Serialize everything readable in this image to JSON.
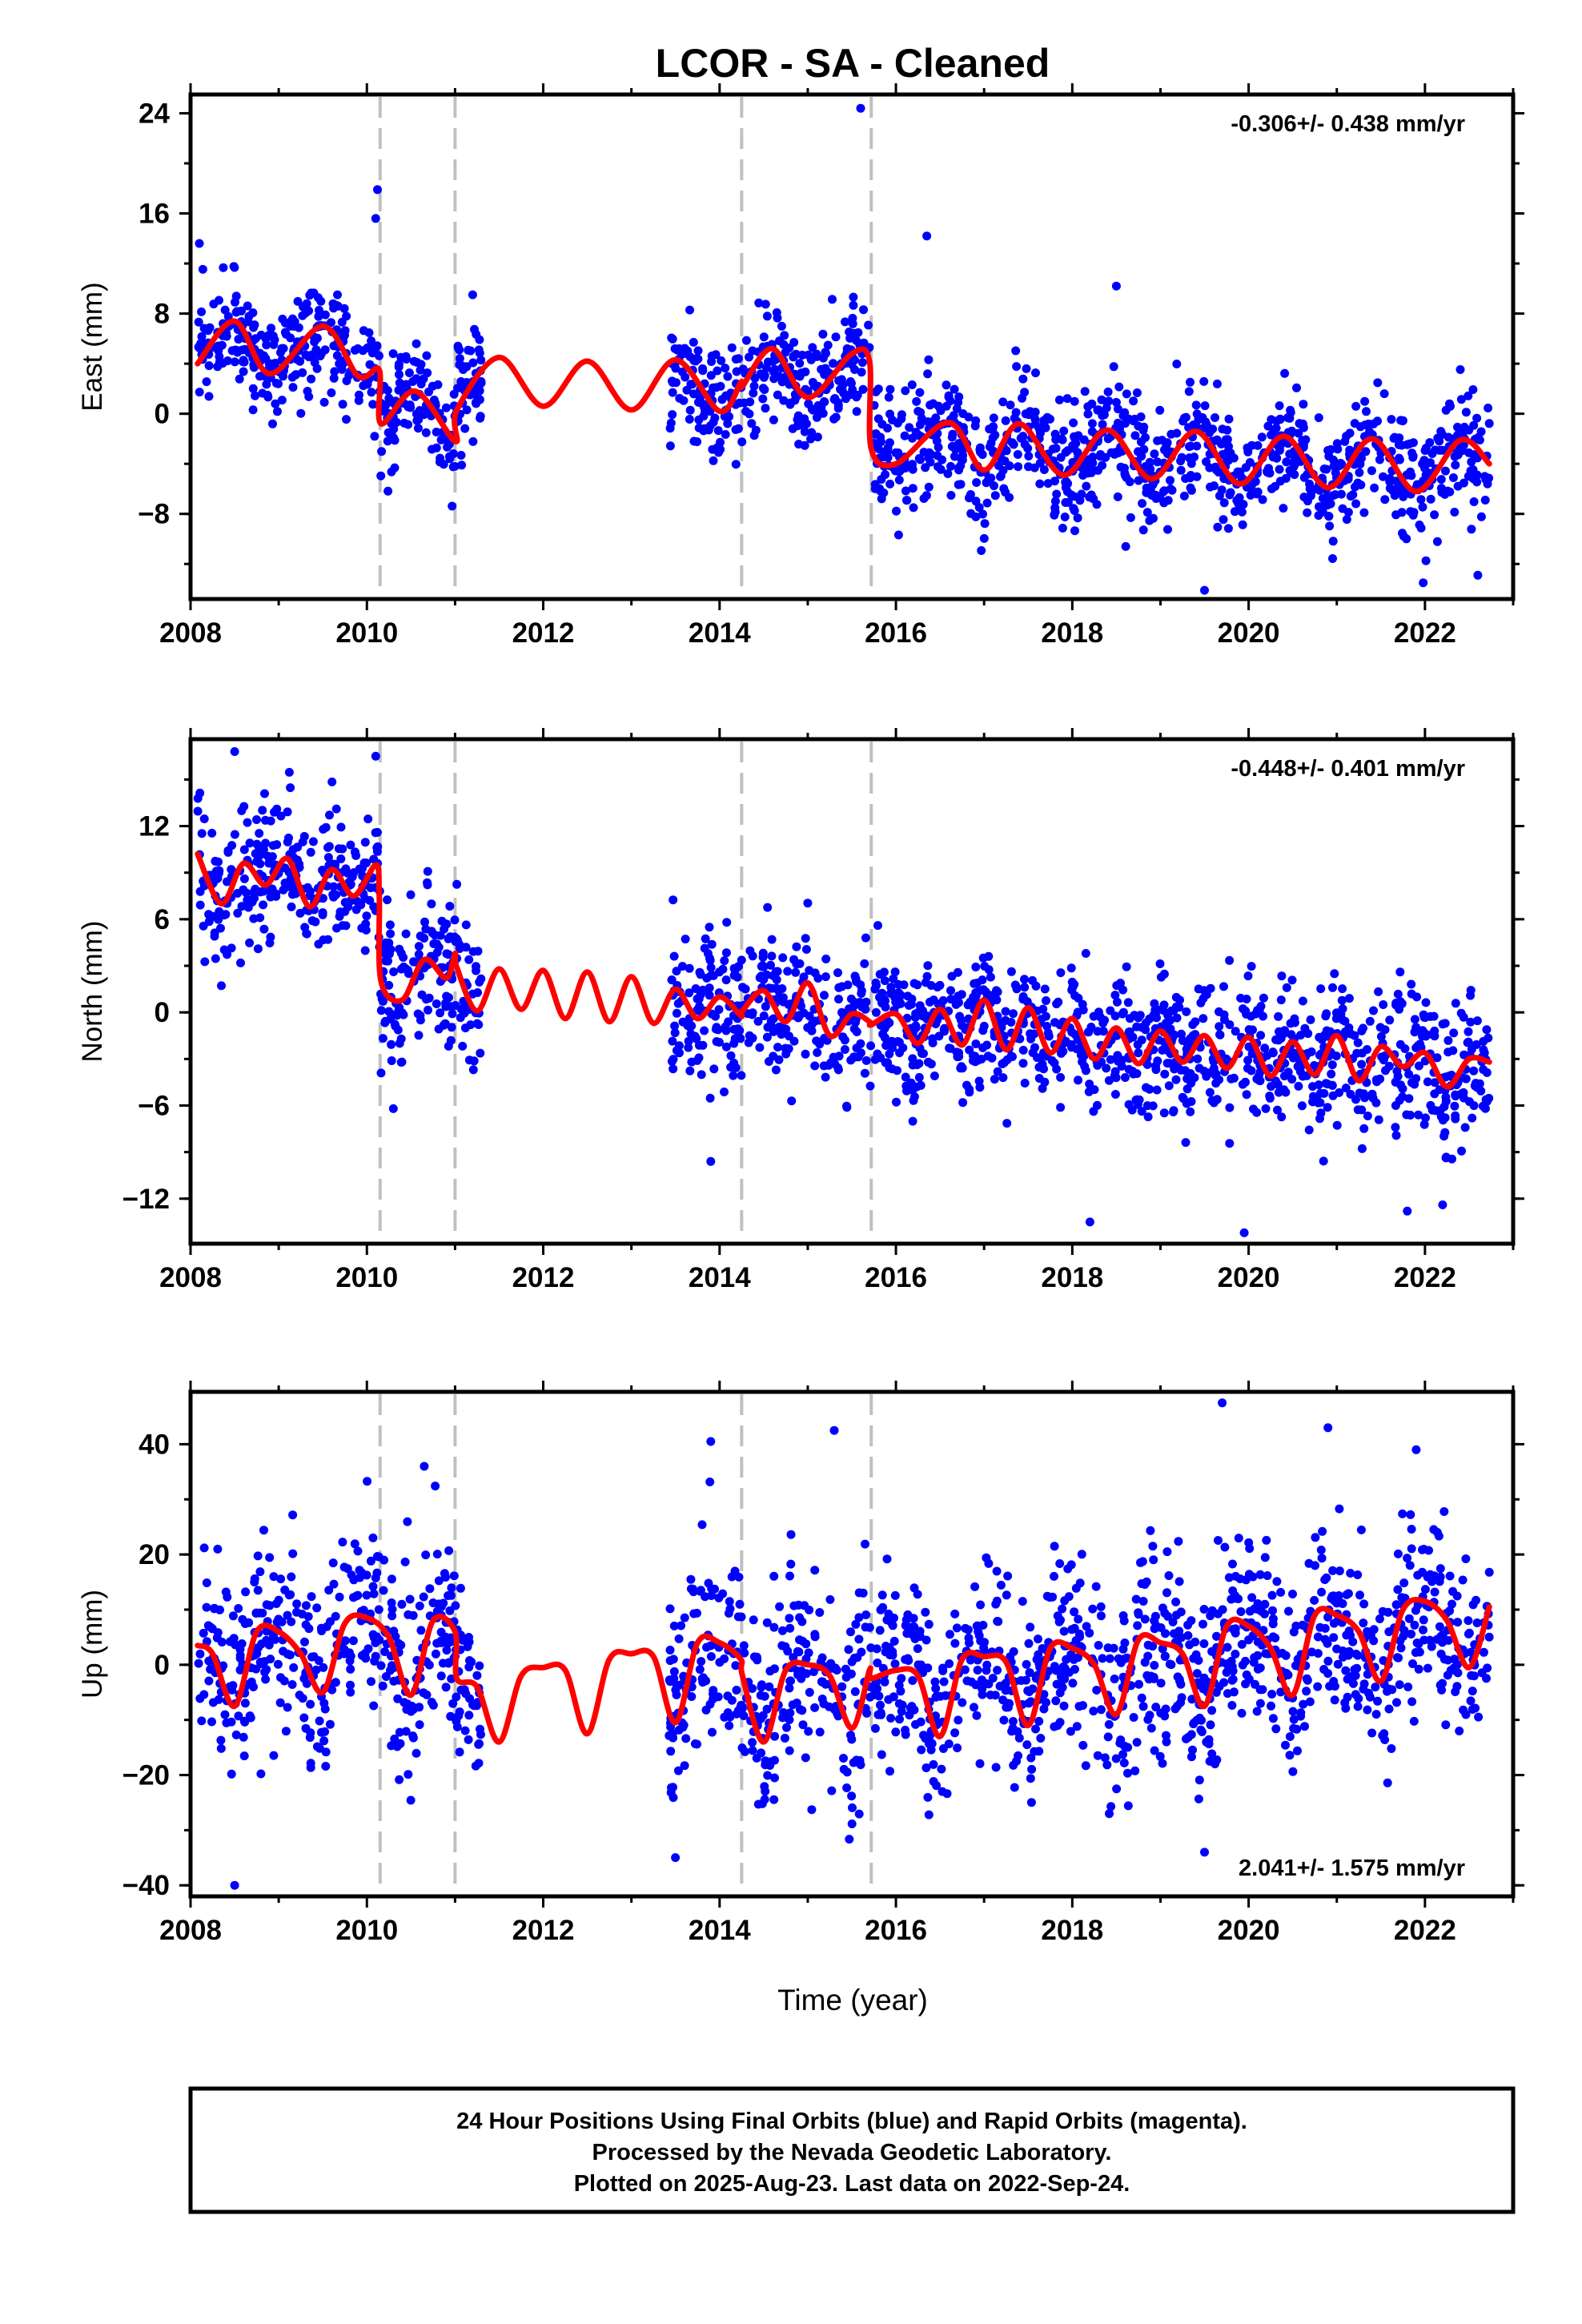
{
  "title": "LCOR  - SA - Cleaned",
  "x_axis_label": "Time (year)",
  "footer_lines": [
    "24 Hour Positions Using Final Orbits (blue) and Rapid Orbits (magenta).",
    "Processed by the Nevada Geodetic Laboratory.",
    "Plotted on 2025-Aug-23. Last data on 2022-Sep-24."
  ],
  "colors": {
    "points": "#0000ff",
    "model": "#ff0000",
    "breaks": "#c0c0c0",
    "frame": "#000000"
  },
  "chart_data": [
    {
      "type": "scatter",
      "panel": "east",
      "ylabel": "East (mm)",
      "rate_text": "-0.306+/- 0.438 mm/yr",
      "rate_position": "top-right",
      "xlim": [
        2008.0,
        2023.0
      ],
      "ylim": [
        -14.8,
        25.5
      ],
      "xticks": [
        2008,
        2010,
        2012,
        2014,
        2016,
        2018,
        2020,
        2022
      ],
      "yticks": [
        24,
        16,
        8,
        0,
        -8
      ],
      "xtick_labels": [
        "2008",
        "2010",
        "2012",
        "2014",
        "2016",
        "2018",
        "2020",
        "2022"
      ],
      "ytick_labels": [
        "24",
        "16",
        "8",
        "0",
        "-8"
      ],
      "step_epochs": [
        2010.15,
        2011.0,
        2014.25,
        2015.72
      ],
      "data_segments": [
        [
          2008.08,
          2011.3
        ],
        [
          2013.42,
          2015.72
        ],
        [
          2015.75,
          2022.73
        ]
      ],
      "trend_mm_per_yr": -0.306,
      "scatter_sigma_mm": 2.3,
      "data_points": [
        [
          2008.1,
          13.6
        ],
        [
          2010.1,
          15.6
        ],
        [
          2010.12,
          17.9
        ],
        [
          2011.2,
          9.5
        ],
        [
          2015.6,
          24.4
        ],
        [
          2016.35,
          14.2
        ],
        [
          2018.5,
          10.2
        ],
        [
          2019.5,
          -14.1
        ],
        [
          2021.98,
          -13.5
        ],
        [
          2022.6,
          -12.9
        ]
      ],
      "series": [
        {
          "name": "model",
          "x": [
            2008.08,
            2008.5,
            2008.9,
            2009.5,
            2009.9,
            2010.14,
            2010.16,
            2010.55,
            2011.0,
            2011.02,
            2011.5,
            2012.0,
            2012.5,
            2013.0,
            2013.5,
            2014.0,
            2014.24,
            2014.26,
            2014.6,
            2015.0,
            2015.5,
            2015.7,
            2015.72,
            2016.0,
            2016.6,
            2017.0,
            2017.4,
            2017.9,
            2018.4,
            2018.9,
            2019.4,
            2019.9,
            2020.4,
            2020.9,
            2021.4,
            2021.9,
            2022.4,
            2022.73
          ],
          "y": [
            4.0,
            7.4,
            3.2,
            7.0,
            3.0,
            3.5,
            -0.8,
            1.8,
            -2.2,
            0.3,
            4.5,
            0.6,
            4.2,
            0.3,
            4.3,
            0.2,
            2.5,
            2.2,
            5.2,
            1.3,
            4.8,
            4.2,
            -2.8,
            -4.0,
            -0.7,
            -4.5,
            -0.8,
            -4.9,
            -1.3,
            -5.2,
            -1.4,
            -5.6,
            -1.8,
            -5.9,
            -2.0,
            -6.2,
            -2.1,
            -4.0
          ]
        }
      ]
    },
    {
      "type": "scatter",
      "panel": "north",
      "ylabel": "North (mm)",
      "rate_text": "-0.448+/- 0.401 mm/yr",
      "rate_position": "top-right",
      "xlim": [
        2008.0,
        2023.0
      ],
      "ylim": [
        -14.9,
        17.6
      ],
      "xticks": [
        2008,
        2010,
        2012,
        2014,
        2016,
        2018,
        2020,
        2022
      ],
      "yticks": [
        12,
        6,
        0,
        -6,
        -12
      ],
      "xtick_labels": [
        "2008",
        "2010",
        "2012",
        "2014",
        "2016",
        "2018",
        "2020",
        "2022"
      ],
      "ytick_labels": [
        "12",
        "6",
        "0",
        "-6",
        "-12"
      ],
      "step_epochs": [
        2010.15,
        2011.0,
        2014.25,
        2015.72
      ],
      "data_segments": [
        [
          2008.08,
          2011.3
        ],
        [
          2013.42,
          2015.72
        ],
        [
          2015.75,
          2022.73
        ]
      ],
      "trend_mm_per_yr": -0.448,
      "scatter_sigma_mm": 2.2,
      "data_points": [
        [
          2008.5,
          16.8
        ],
        [
          2010.1,
          16.5
        ],
        [
          2010.3,
          -6.2
        ],
        [
          2013.9,
          -9.6
        ],
        [
          2018.2,
          -13.5
        ],
        [
          2019.95,
          -14.2
        ],
        [
          2021.8,
          -12.8
        ],
        [
          2022.2,
          -12.4
        ]
      ],
      "series": [
        {
          "name": "model",
          "x": [
            2008.08,
            2008.35,
            2008.6,
            2008.85,
            2009.1,
            2009.35,
            2009.6,
            2009.85,
            2010.1,
            2010.14,
            2010.16,
            2010.4,
            2010.65,
            2010.9,
            2011.0,
            2011.02,
            2011.25,
            2011.5,
            2011.75,
            2012.0,
            2012.25,
            2012.5,
            2012.75,
            2013.0,
            2013.25,
            2013.5,
            2013.75,
            2014.0,
            2014.24,
            2014.26,
            2014.5,
            2014.75,
            2015.0,
            2015.25,
            2015.5,
            2015.7,
            2015.72,
            2016.0,
            2016.25,
            2016.5,
            2016.75,
            2017.0,
            2017.25,
            2017.5,
            2017.75,
            2018.0,
            2018.25,
            2018.5,
            2018.75,
            2019.0,
            2019.25,
            2019.5,
            2019.75,
            2020.0,
            2020.25,
            2020.5,
            2020.75,
            2021.0,
            2021.25,
            2021.5,
            2021.75,
            2022.0,
            2022.25,
            2022.5,
            2022.73
          ],
          "y": [
            10.2,
            7.0,
            9.6,
            8.2,
            9.9,
            6.8,
            9.2,
            7.5,
            9.5,
            7.6,
            2.0,
            0.8,
            3.4,
            2.2,
            3.8,
            2.9,
            0.1,
            2.8,
            0.2,
            2.7,
            -0.4,
            2.6,
            -0.6,
            2.3,
            -0.7,
            1.5,
            -0.4,
            1.0,
            -0.2,
            0.1,
            1.4,
            -0.6,
            1.9,
            -1.5,
            -0.1,
            -0.6,
            -0.8,
            -0.1,
            -2.0,
            0.2,
            -2.1,
            0.8,
            -2.4,
            0.3,
            -2.6,
            -0.4,
            -3.0,
            -1.0,
            -3.3,
            -1.2,
            -3.2,
            -1.5,
            -3.6,
            -1.6,
            -4.1,
            -1.9,
            -4.0,
            -1.5,
            -4.4,
            -2.2,
            -3.5,
            -2.6,
            -4.8,
            -3.0,
            -3.2
          ]
        }
      ]
    },
    {
      "type": "scatter",
      "panel": "up",
      "ylabel": "Up (mm)",
      "rate_text": "2.041+/- 1.575 mm/yr",
      "rate_position": "bottom-right",
      "xlim": [
        2008.0,
        2023.0
      ],
      "ylim": [
        -42.0,
        49.5
      ],
      "xticks": [
        2008,
        2010,
        2012,
        2014,
        2016,
        2018,
        2020,
        2022
      ],
      "yticks": [
        40,
        20,
        0,
        -20,
        -40
      ],
      "xtick_labels": [
        "2008",
        "2010",
        "2012",
        "2014",
        "2016",
        "2018",
        "2020",
        "2022"
      ],
      "ytick_labels": [
        "40",
        "20",
        "0",
        "-20",
        "-40"
      ],
      "step_epochs": [
        2010.15,
        2011.0,
        2014.25,
        2015.72
      ],
      "data_segments": [
        [
          2008.08,
          2011.3
        ],
        [
          2013.42,
          2015.72
        ],
        [
          2015.75,
          2022.73
        ]
      ],
      "trend_mm_per_yr": 2.041,
      "scatter_sigma_mm": 8.5,
      "data_points": [
        [
          2008.5,
          -40.0
        ],
        [
          2010.65,
          36.0
        ],
        [
          2013.9,
          40.5
        ],
        [
          2015.3,
          42.5
        ],
        [
          2019.5,
          -34.0
        ],
        [
          2019.7,
          47.5
        ],
        [
          2020.9,
          43.0
        ],
        [
          2021.9,
          39.0
        ]
      ],
      "series": [
        {
          "name": "model",
          "x": [
            2008.08,
            2008.25,
            2008.5,
            2008.75,
            2009.0,
            2009.25,
            2009.5,
            2009.75,
            2010.0,
            2010.25,
            2010.5,
            2010.75,
            2011.0,
            2011.02,
            2011.25,
            2011.5,
            2011.75,
            2012.0,
            2012.25,
            2012.5,
            2012.75,
            2013.0,
            2013.25,
            2013.5,
            2013.75,
            2014.0,
            2014.24,
            2014.26,
            2014.5,
            2014.75,
            2015.0,
            2015.25,
            2015.5,
            2015.7,
            2015.72,
            2016.0,
            2016.25,
            2016.5,
            2016.75,
            2017.0,
            2017.25,
            2017.5,
            2017.75,
            2018.0,
            2018.25,
            2018.5,
            2018.75,
            2019.0,
            2019.25,
            2019.5,
            2019.75,
            2020.0,
            2020.25,
            2020.5,
            2020.75,
            2021.0,
            2021.25,
            2021.5,
            2021.75,
            2022.0,
            2022.25,
            2022.5,
            2022.73
          ],
          "y": [
            3.5,
            2.0,
            -7.5,
            6.0,
            6.0,
            2.0,
            -5.0,
            7.5,
            8.5,
            5.0,
            -5.5,
            8.0,
            6.0,
            -2.5,
            -4.0,
            -14.0,
            -2.0,
            -0.5,
            -1.0,
            -12.5,
            1.0,
            2.0,
            1.5,
            -10.5,
            4.0,
            4.0,
            1.0,
            -2.0,
            -14.0,
            -1.0,
            0.0,
            -2.0,
            -11.5,
            -1.0,
            -2.5,
            -1.0,
            -2.0,
            -13.0,
            1.0,
            1.5,
            0.5,
            -11.0,
            3.0,
            3.0,
            0.0,
            -9.0,
            4.5,
            4.0,
            2.0,
            -7.5,
            7.0,
            7.0,
            3.0,
            -5.5,
            9.0,
            9.0,
            6.0,
            -3.0,
            10.0,
            11.5,
            8.0,
            -0.5,
            10.5
          ]
        }
      ]
    }
  ]
}
